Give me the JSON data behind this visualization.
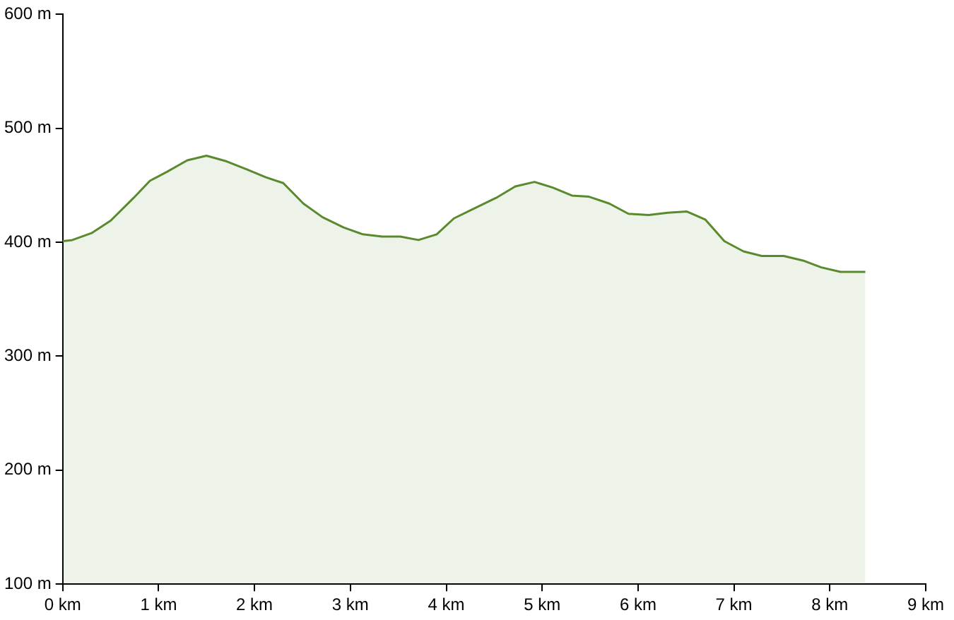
{
  "chart_data": {
    "type": "area",
    "x": [
      0,
      0.1,
      0.3,
      0.5,
      0.74,
      0.91,
      1.09,
      1.3,
      1.5,
      1.71,
      1.92,
      2.12,
      2.3,
      2.51,
      2.71,
      2.93,
      3.13,
      3.33,
      3.52,
      3.71,
      3.9,
      4.08,
      4.3,
      4.52,
      4.72,
      4.92,
      5.11,
      5.31,
      5.49,
      5.7,
      5.9,
      6.11,
      6.31,
      6.51,
      6.7,
      6.9,
      7.1,
      7.29,
      7.52,
      7.72,
      7.91,
      8.11,
      8.37
    ],
    "series": [
      {
        "color": "#5a8a2e",
        "values": [
          401,
          402,
          408,
          419,
          439,
          454,
          462,
          472,
          476,
          471,
          464,
          457,
          452,
          434,
          422,
          413,
          407,
          405,
          405,
          402,
          407,
          421,
          430,
          439,
          449,
          453,
          448,
          441,
          440,
          434,
          425,
          424,
          426,
          427,
          420,
          401,
          392,
          388,
          388,
          384,
          378,
          374,
          374
        ]
      }
    ],
    "xlim": [
      0,
      9
    ],
    "xticks": [
      {
        "value": 0,
        "label": "0 km"
      },
      {
        "value": 1,
        "label": "1 km"
      },
      {
        "value": 2,
        "label": "2 km"
      },
      {
        "value": 3,
        "label": "3 km"
      },
      {
        "value": 4,
        "label": "4 km"
      },
      {
        "value": 5,
        "label": "5 km"
      },
      {
        "value": 6,
        "label": "6 km"
      },
      {
        "value": 7,
        "label": "7 km"
      },
      {
        "value": 8,
        "label": "8 km"
      },
      {
        "value": 9,
        "label": "9 km"
      }
    ],
    "ylim": [
      100,
      600
    ],
    "yticks": [
      {
        "value": 100,
        "label": "100 m"
      },
      {
        "value": 200,
        "label": "200 m"
      },
      {
        "value": 300,
        "label": "300 m"
      },
      {
        "value": 400,
        "label": "400 m"
      },
      {
        "value": 500,
        "label": "500 m"
      },
      {
        "value": 600,
        "label": "600 m"
      }
    ],
    "grid": false,
    "legend": false,
    "marker": "none",
    "line_style": "solid"
  }
}
